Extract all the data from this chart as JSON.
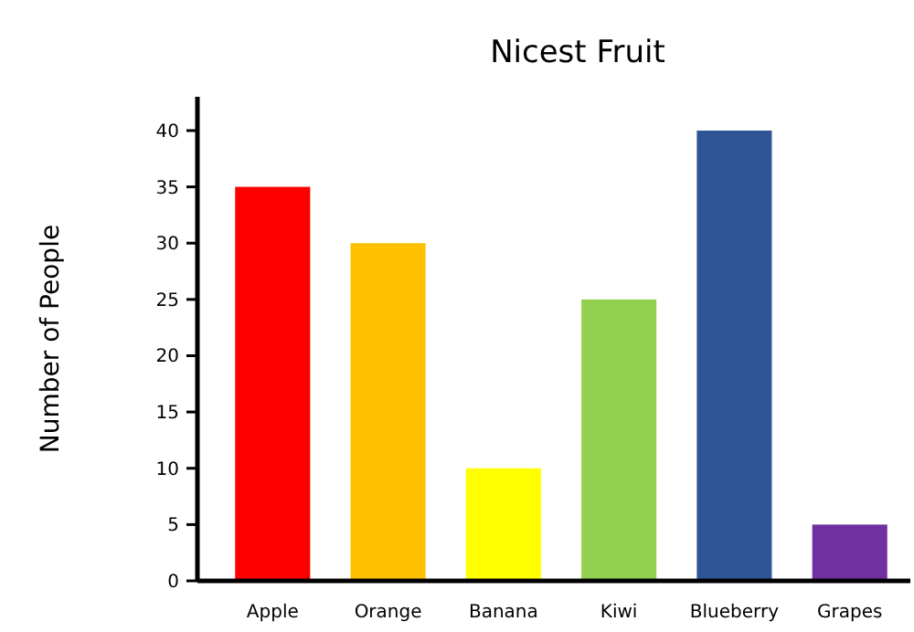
{
  "chart_data": {
    "type": "bar",
    "title": "Nicest Fruit",
    "ylabel": "Number of People",
    "categories": [
      "Apple",
      "Orange",
      "Banana",
      "Kiwi",
      "Blueberry",
      "Grapes"
    ],
    "values": [
      35,
      30,
      10,
      25,
      40,
      5
    ],
    "colors": [
      "#ff0000",
      "#ffc000",
      "#ffff00",
      "#92d050",
      "#2f5597",
      "#7030a0"
    ],
    "ylim": [
      0,
      43
    ],
    "yticks": [
      0,
      5,
      10,
      15,
      20,
      25,
      30,
      35,
      40
    ],
    "grid": false
  }
}
